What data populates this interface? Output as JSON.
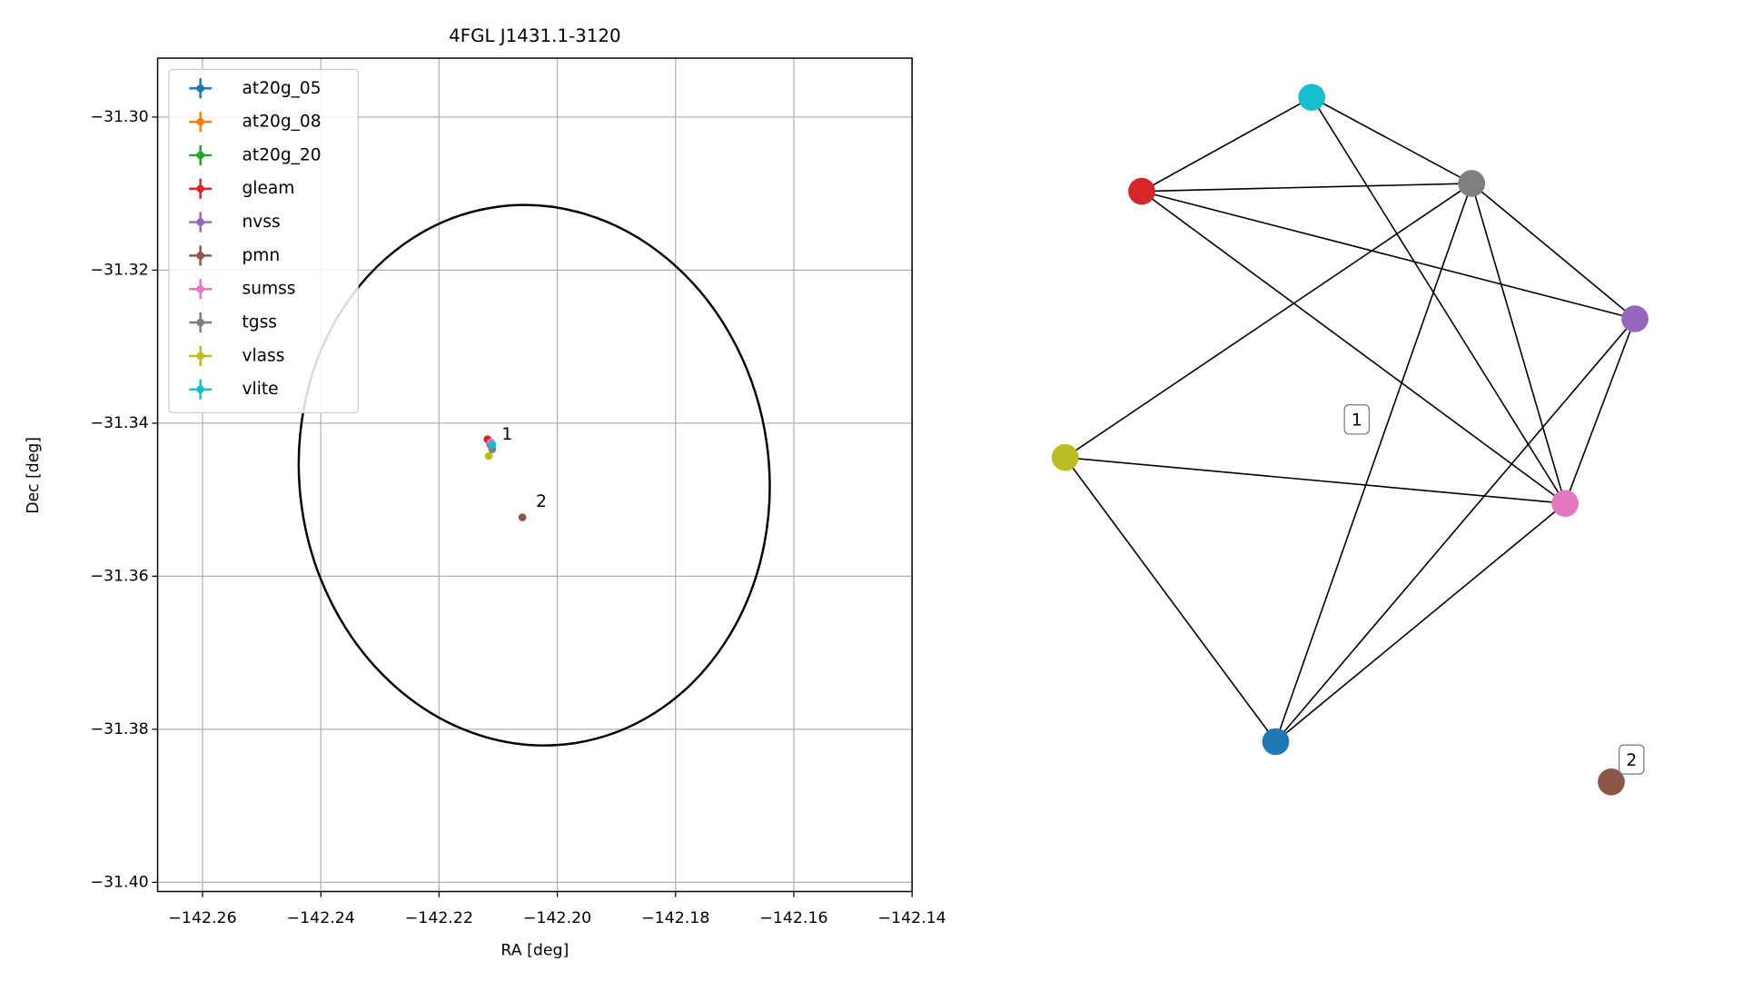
{
  "chart_data": [
    {
      "type": "scatter",
      "title": "4FGL J1431.1-3120",
      "x_label": "RA [deg]",
      "y_label": "Dec [deg]",
      "xlim": [
        -142.2676,
        -142.14
      ],
      "ylim": [
        -31.4012,
        -31.2923
      ],
      "xticks": [
        {
          "value": -142.26,
          "label": "−142.26"
        },
        {
          "value": -142.24,
          "label": "−142.24"
        },
        {
          "value": -142.22,
          "label": "−142.22"
        },
        {
          "value": -142.2,
          "label": "−142.20"
        },
        {
          "value": -142.18,
          "label": "−142.18"
        },
        {
          "value": -142.16,
          "label": "−142.16"
        },
        {
          "value": -142.14,
          "label": "−142.14"
        }
      ],
      "yticks": [
        {
          "value": -31.3,
          "label": "−31.30"
        },
        {
          "value": -31.32,
          "label": "−31.32"
        },
        {
          "value": -31.34,
          "label": "−31.34"
        },
        {
          "value": -31.36,
          "label": "−31.36"
        },
        {
          "value": -31.38,
          "label": "−31.38"
        },
        {
          "value": -31.4,
          "label": "−31.40"
        }
      ],
      "grid": true,
      "legend": "upper left",
      "series": [
        {
          "name": "at20g_05",
          "color": "#1f77b4",
          "x": [
            -142.2113
          ],
          "y": [
            -31.3428
          ]
        },
        {
          "name": "at20g_08",
          "color": "#ff7f0e",
          "x": [
            -142.2113
          ],
          "y": [
            -31.3428
          ]
        },
        {
          "name": "at20g_20",
          "color": "#2ca02c",
          "x": [
            -142.2113
          ],
          "y": [
            -31.3428
          ]
        },
        {
          "name": "gleam",
          "color": "#d62728",
          "x": [
            -142.2118
          ],
          "y": [
            -31.3421
          ]
        },
        {
          "name": "nvss",
          "color": "#9467bd",
          "x": [
            -142.2114
          ],
          "y": [
            -31.3426
          ]
        },
        {
          "name": "pmn",
          "color": "#8c564b",
          "x": [
            -142.2059
          ],
          "y": [
            -31.3523
          ]
        },
        {
          "name": "sumss",
          "color": "#e377c2",
          "x": [
            -142.2112
          ],
          "y": [
            -31.3425
          ]
        },
        {
          "name": "tgss",
          "color": "#7f7f7f",
          "x": [
            -142.211
          ],
          "y": [
            -31.3434
          ]
        },
        {
          "name": "vlass",
          "color": "#bcbd22",
          "x": [
            -142.2116
          ],
          "y": [
            -31.3443
          ]
        },
        {
          "name": "vlite",
          "color": "#17becf",
          "x": [
            -142.211
          ],
          "y": [
            -31.3428
          ]
        }
      ],
      "ellipse": {
        "x": -142.2039,
        "y": -31.3468,
        "rx": 0.0397,
        "ry": 0.0354,
        "angle": -8,
        "color": "#000000"
      },
      "annotations": [
        {
          "text": "1",
          "x": -142.2094,
          "y": -31.3415
        },
        {
          "text": "2",
          "x": -142.2036,
          "y": -31.3503
        }
      ]
    },
    {
      "type": "network",
      "nodes": [
        9,
        7,
        3,
        4,
        8,
        6,
        0,
        5
      ],
      "edges": [
        [
          0,
          1
        ],
        [
          0,
          2
        ],
        [
          0,
          5
        ],
        [
          2,
          1
        ],
        [
          2,
          3
        ],
        [
          2,
          5
        ],
        [
          1,
          3
        ],
        [
          1,
          5
        ],
        [
          1,
          4
        ],
        [
          1,
          6
        ],
        [
          3,
          5
        ],
        [
          3,
          6
        ],
        [
          4,
          5
        ],
        [
          4,
          6
        ],
        [
          5,
          6
        ]
      ],
      "labels": [
        "1",
        "2"
      ]
    }
  ]
}
